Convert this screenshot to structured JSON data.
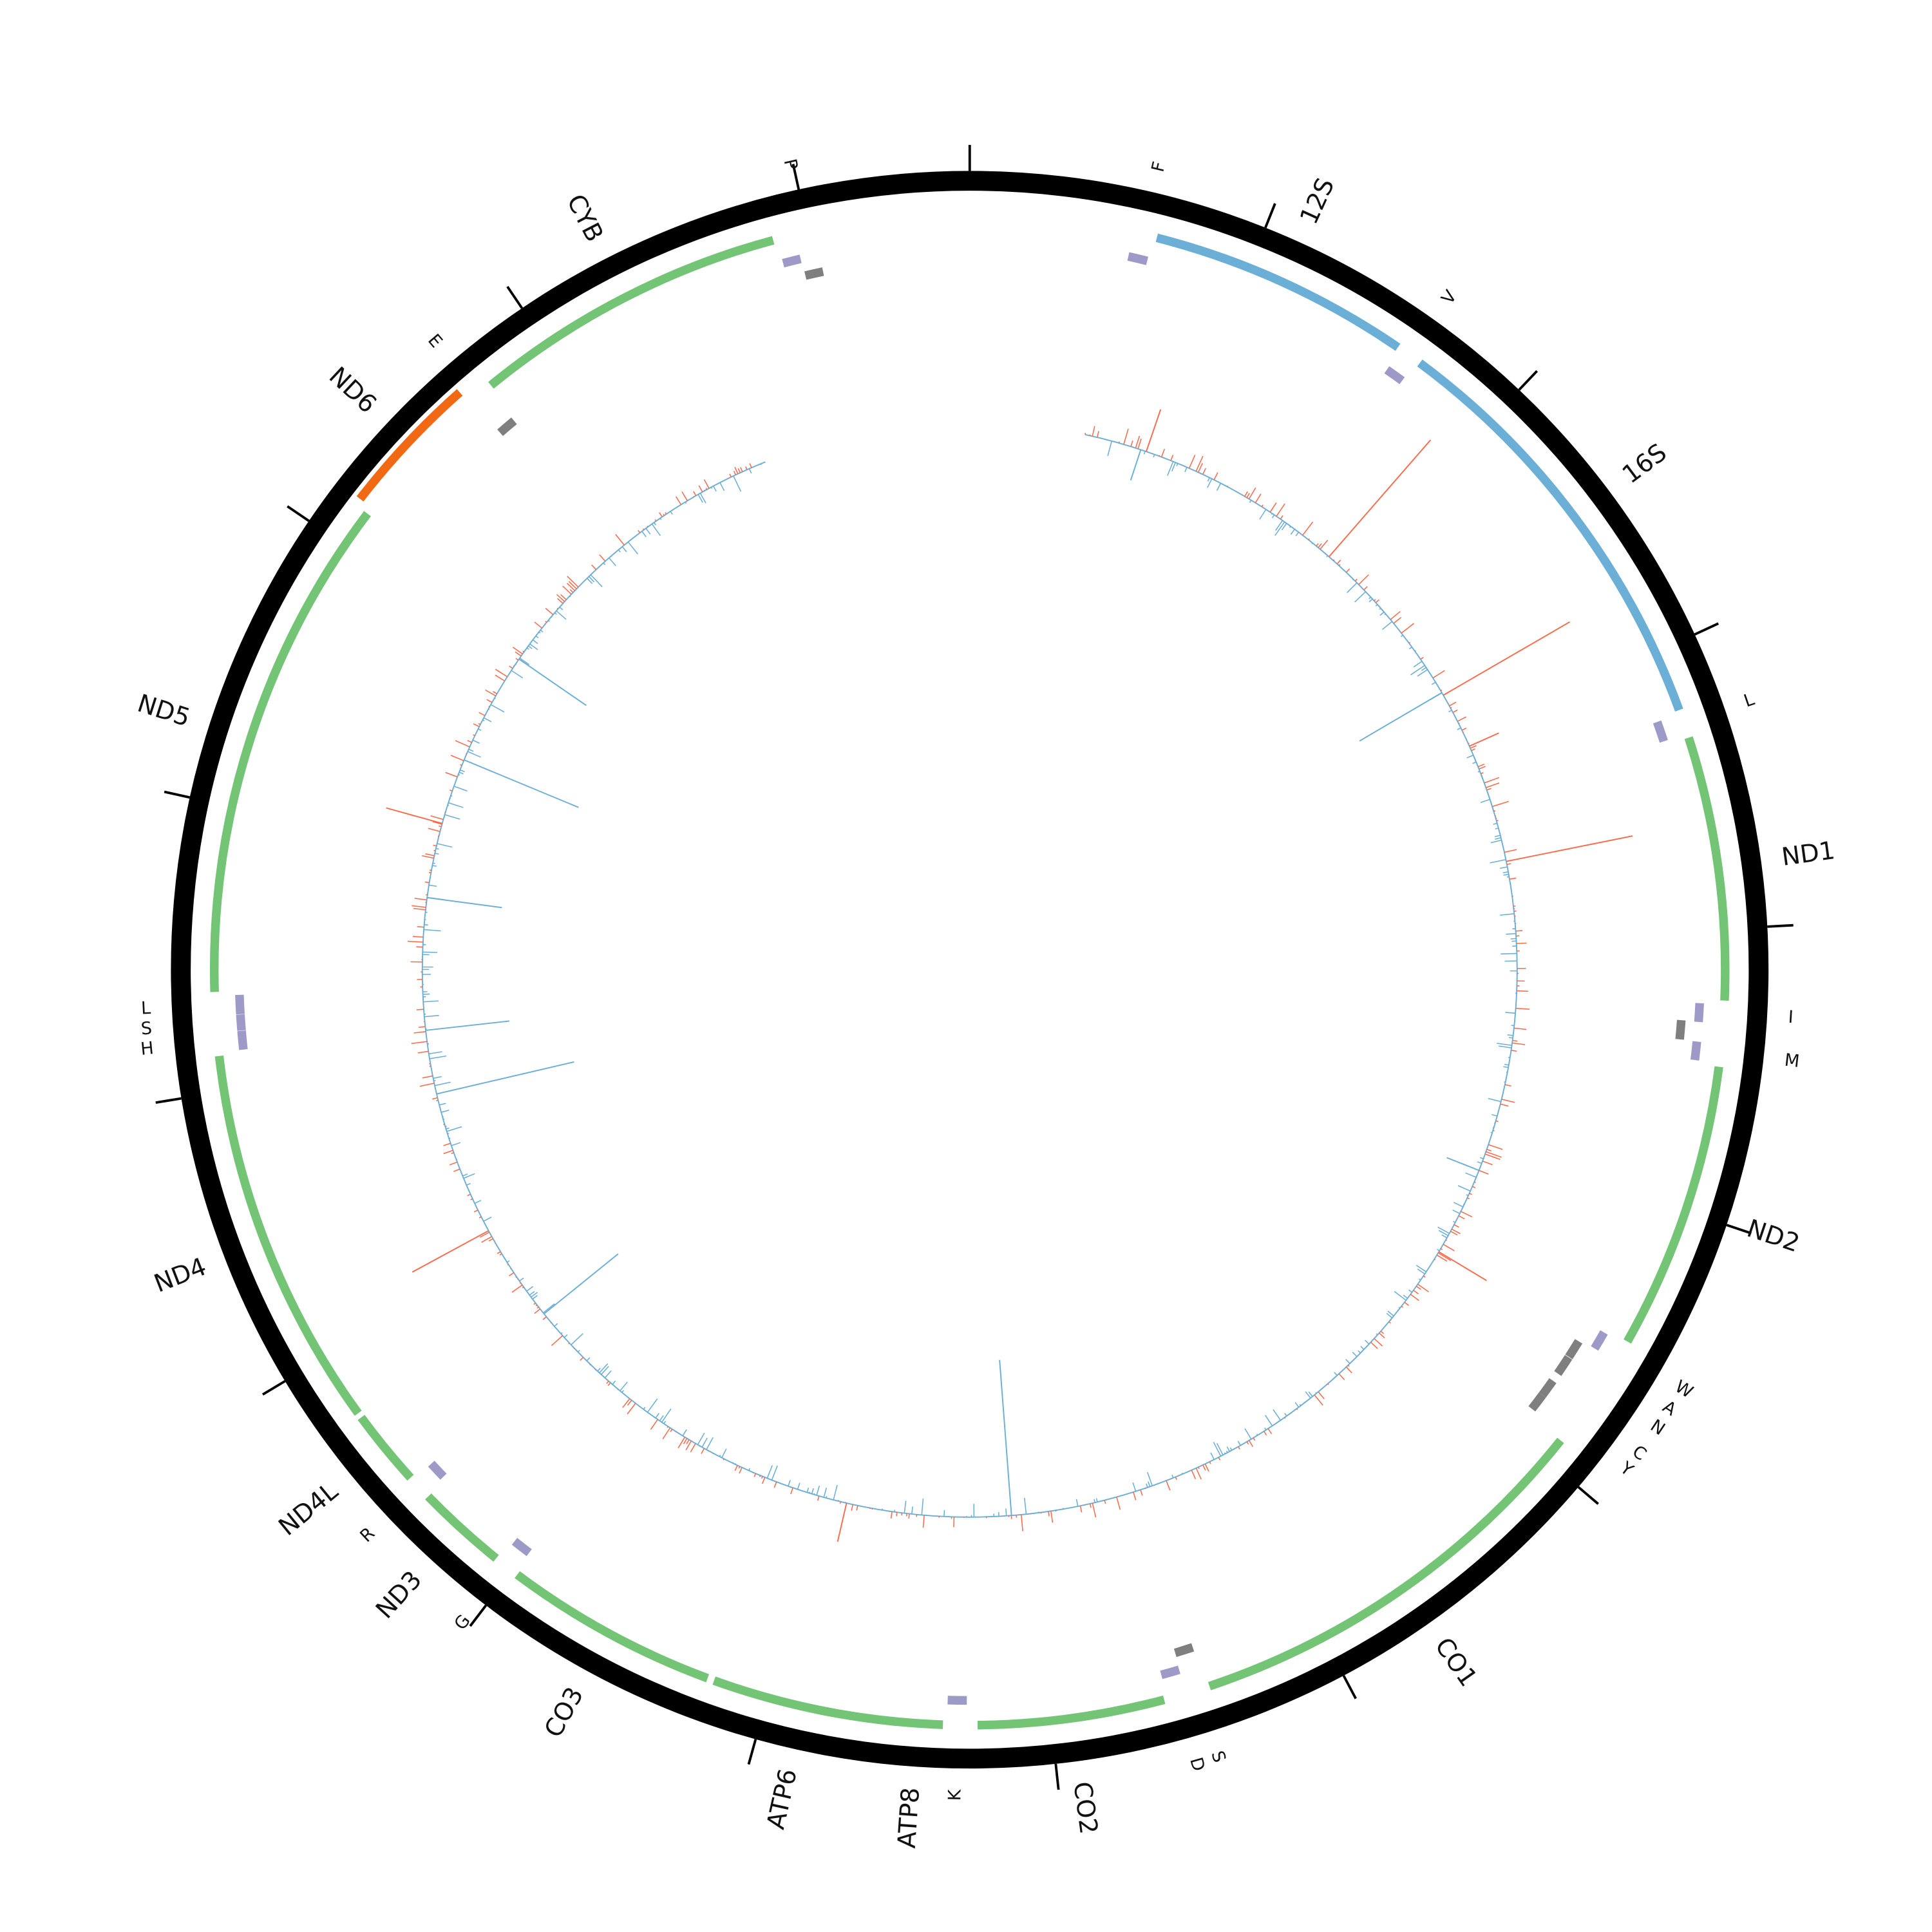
{
  "genome": {
    "length": 16569,
    "tick_interval": 1000
  },
  "colors": {
    "ring": "#000000",
    "protein_plus": "#74c476",
    "protein_minus": "#f16913",
    "rrna": "#6baed6",
    "trna_plus": "#9e9ac8",
    "trna_minus": "#7f7f7f",
    "coverage_up": "#fb6a4a",
    "coverage_down": "#6baed6"
  },
  "genes": [
    {
      "name": "F",
      "start": 577,
      "end": 647,
      "strand": "+",
      "type": "tRNA"
    },
    {
      "name": "12S",
      "start": 648,
      "end": 1601,
      "strand": "+",
      "type": "rRNA"
    },
    {
      "name": "V",
      "start": 1602,
      "end": 1670,
      "strand": "+",
      "type": "tRNA"
    },
    {
      "name": "16S",
      "start": 1671,
      "end": 3229,
      "strand": "+",
      "type": "rRNA"
    },
    {
      "name": "L",
      "start": 3230,
      "end": 3304,
      "strand": "+",
      "type": "tRNA"
    },
    {
      "name": "ND1",
      "start": 3307,
      "end": 4262,
      "strand": "+",
      "type": "protein"
    },
    {
      "name": "I",
      "start": 4263,
      "end": 4331,
      "strand": "+",
      "type": "tRNA"
    },
    {
      "name": "",
      "start": 4329,
      "end": 4400,
      "strand": "-",
      "type": "tRNA"
    },
    {
      "name": "M",
      "start": 4402,
      "end": 4469,
      "strand": "+",
      "type": "tRNA"
    },
    {
      "name": "ND2",
      "start": 4470,
      "end": 5511,
      "strand": "+",
      "type": "protein"
    },
    {
      "name": "W",
      "start": 5512,
      "end": 5579,
      "strand": "+",
      "type": "tRNA"
    },
    {
      "name": "A",
      "start": 5587,
      "end": 5655,
      "strand": "-",
      "type": "tRNA"
    },
    {
      "name": "N",
      "start": 5657,
      "end": 5729,
      "strand": "-",
      "type": "tRNA"
    },
    {
      "name": "C",
      "start": 5761,
      "end": 5826,
      "strand": "-",
      "type": "tRNA"
    },
    {
      "name": "Y",
      "start": 5826,
      "end": 5891,
      "strand": "-",
      "type": "tRNA"
    },
    {
      "name": "CO1",
      "start": 5904,
      "end": 7445,
      "strand": "+",
      "type": "protein"
    },
    {
      "name": "S",
      "start": 7446,
      "end": 7514,
      "strand": "-",
      "type": "tRNA"
    },
    {
      "name": "D",
      "start": 7518,
      "end": 7585,
      "strand": "+",
      "type": "tRNA"
    },
    {
      "name": "CO2",
      "start": 7586,
      "end": 8269,
      "strand": "+",
      "type": "protein"
    },
    {
      "name": "K",
      "start": 8295,
      "end": 8364,
      "strand": "+",
      "type": "tRNA"
    },
    {
      "name": "ATP8",
      "start": 8366,
      "end": 8572,
      "strand": "+",
      "type": "protein"
    },
    {
      "name": "ATP6",
      "start": 8527,
      "end": 9207,
      "strand": "+",
      "type": "protein"
    },
    {
      "name": "CO3",
      "start": 9207,
      "end": 9990,
      "strand": "+",
      "type": "protein"
    },
    {
      "name": "G",
      "start": 9991,
      "end": 10058,
      "strand": "+",
      "type": "tRNA"
    },
    {
      "name": "ND3",
      "start": 10059,
      "end": 10404,
      "strand": "+",
      "type": "protein"
    },
    {
      "name": "R",
      "start": 10405,
      "end": 10469,
      "strand": "+",
      "type": "tRNA"
    },
    {
      "name": "ND4L",
      "start": 10470,
      "end": 10766,
      "strand": "+",
      "type": "protein"
    },
    {
      "name": "ND4",
      "start": 10760,
      "end": 12137,
      "strand": "+",
      "type": "protein"
    },
    {
      "name": "H",
      "start": 12138,
      "end": 12206,
      "strand": "+",
      "type": "tRNA"
    },
    {
      "name": "S",
      "start": 12207,
      "end": 12265,
      "strand": "+",
      "type": "tRNA"
    },
    {
      "name": "L",
      "start": 12266,
      "end": 12336,
      "strand": "+",
      "type": "tRNA"
    },
    {
      "name": "ND5",
      "start": 12337,
      "end": 14148,
      "strand": "+",
      "type": "protein"
    },
    {
      "name": "ND6",
      "start": 14149,
      "end": 14673,
      "strand": "-",
      "type": "protein"
    },
    {
      "name": "E",
      "start": 14674,
      "end": 14742,
      "strand": "-",
      "type": "tRNA"
    },
    {
      "name": "CYB",
      "start": 14747,
      "end": 15887,
      "strand": "+",
      "type": "protein"
    },
    {
      "name": "",
      "start": 15888,
      "end": 15953,
      "strand": "+",
      "type": "tRNA"
    },
    {
      "name": "P",
      "start": 15956,
      "end": 16023,
      "strand": "-",
      "type": "tRNA"
    }
  ],
  "coverage": {
    "start": 560,
    "end": 15560,
    "spikes": [
      {
        "pos": 866,
        "value": 36
      },
      {
        "pos": 838,
        "value": -26
      },
      {
        "pos": 1888,
        "value": 125
      },
      {
        "pos": 2757,
        "value": 118
      },
      {
        "pos": 2743,
        "value": -77
      },
      {
        "pos": 3033,
        "value": 26
      },
      {
        "pos": 3617,
        "value": 104
      },
      {
        "pos": 5132,
        "value": -28
      },
      {
        "pos": 5570,
        "value": 45
      },
      {
        "pos": 8083,
        "value": -126
      },
      {
        "pos": 8883,
        "value": 32
      },
      {
        "pos": 10634,
        "value": -77
      },
      {
        "pos": 11116,
        "value": 70
      },
      {
        "pos": 11823,
        "value": -114
      },
      {
        "pos": 12134,
        "value": -68
      },
      {
        "pos": 12775,
        "value": -61
      },
      {
        "pos": 13140,
        "value": 47
      },
      {
        "pos": 13464,
        "value": -100
      },
      {
        "pos": 14018,
        "value": -66
      }
    ]
  }
}
